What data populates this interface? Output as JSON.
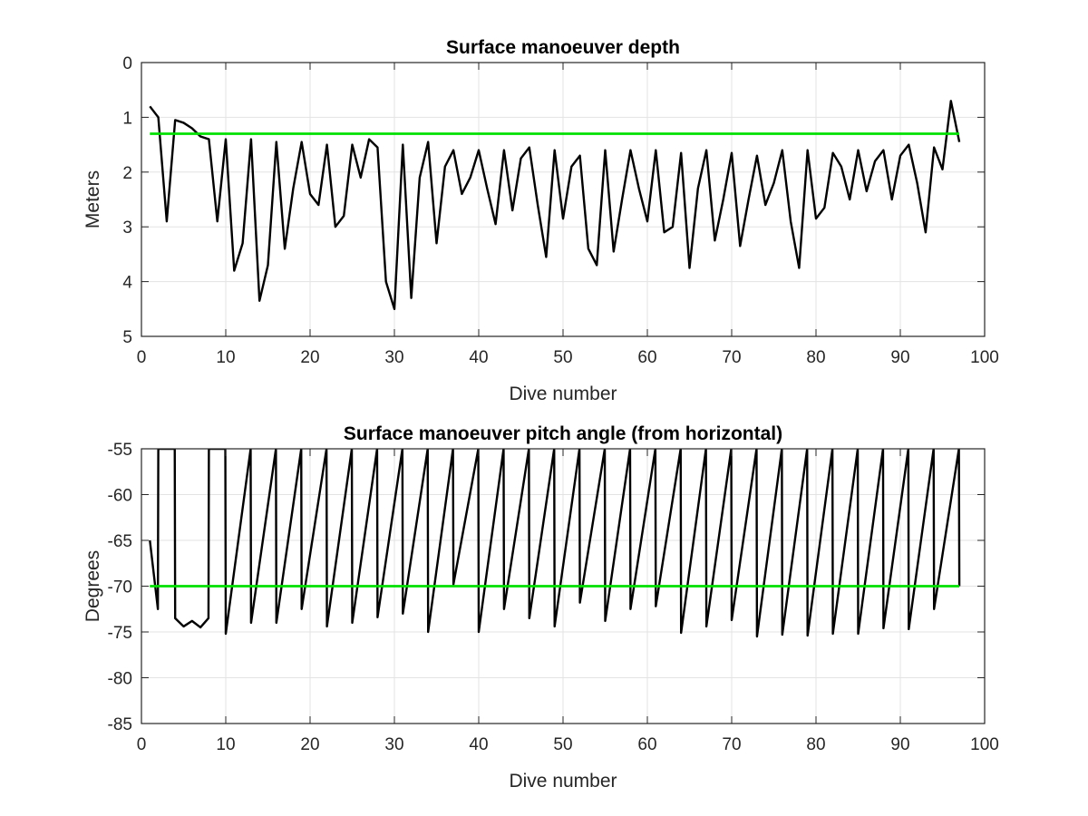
{
  "chart_data": [
    {
      "type": "line",
      "title": "Surface manoeuver depth",
      "xlabel": "Dive number",
      "ylabel": "Meters",
      "xlim": [
        0,
        100
      ],
      "ylim": [
        0,
        5
      ],
      "y_reversed": true,
      "grid": true,
      "xticks": [
        0,
        10,
        20,
        30,
        40,
        50,
        60,
        70,
        80,
        90,
        100
      ],
      "yticks": [
        0,
        1,
        2,
        3,
        4,
        5
      ],
      "series": [
        {
          "color": "#000000",
          "x": [
            1,
            2,
            3,
            4,
            5,
            6,
            7,
            8,
            9,
            10,
            11,
            12,
            13,
            14,
            15,
            16,
            17,
            18,
            19,
            20,
            21,
            22,
            23,
            24,
            25,
            26,
            27,
            28,
            29,
            30,
            31,
            32,
            33,
            34,
            35,
            36,
            37,
            38,
            39,
            40,
            41,
            42,
            43,
            44,
            45,
            46,
            47,
            48,
            49,
            50,
            51,
            52,
            53,
            54,
            55,
            56,
            57,
            58,
            59,
            60,
            61,
            62,
            63,
            64,
            65,
            66,
            67,
            68,
            69,
            70,
            71,
            72,
            73,
            74,
            75,
            76,
            77,
            78,
            79,
            80,
            81,
            82,
            83,
            84,
            85,
            86,
            87,
            88,
            89,
            90,
            91,
            92,
            93,
            94,
            95,
            96,
            97
          ],
          "y": [
            0.8,
            1.0,
            2.9,
            1.05,
            1.1,
            1.2,
            1.35,
            1.4,
            2.9,
            1.4,
            3.8,
            3.3,
            1.4,
            4.35,
            3.7,
            1.45,
            3.4,
            2.3,
            1.45,
            2.4,
            2.6,
            1.5,
            3.0,
            2.8,
            1.5,
            2.1,
            1.4,
            1.55,
            4.0,
            4.5,
            1.5,
            4.3,
            2.1,
            1.45,
            3.3,
            1.9,
            1.6,
            2.4,
            2.1,
            1.6,
            2.3,
            2.95,
            1.6,
            2.7,
            1.75,
            1.55,
            2.6,
            3.55,
            1.6,
            2.85,
            1.9,
            1.7,
            3.4,
            3.7,
            1.6,
            3.45,
            2.5,
            1.6,
            2.3,
            2.9,
            1.6,
            3.1,
            3.0,
            1.65,
            3.75,
            2.3,
            1.6,
            3.25,
            2.5,
            1.65,
            3.35,
            2.5,
            1.7,
            2.6,
            2.2,
            1.6,
            2.9,
            3.75,
            1.6,
            2.85,
            2.65,
            1.65,
            1.9,
            2.5,
            1.6,
            2.35,
            1.8,
            1.6,
            2.5,
            1.7,
            1.5,
            2.2,
            3.1,
            1.55,
            1.95,
            0.7,
            1.45
          ]
        },
        {
          "color": "#00e000",
          "x": [
            1,
            97
          ],
          "y": [
            1.3,
            1.3
          ]
        }
      ]
    },
    {
      "type": "line",
      "title": "Surface manoeuver pitch angle (from horizontal)",
      "xlabel": "Dive number",
      "ylabel": "Degrees",
      "xlim": [
        0,
        100
      ],
      "ylim": [
        -85,
        -55
      ],
      "grid": true,
      "xticks": [
        0,
        10,
        20,
        30,
        40,
        50,
        60,
        70,
        80,
        90,
        100
      ],
      "yticks": [
        -55,
        -60,
        -65,
        -70,
        -75,
        -80,
        -85
      ],
      "series": [
        {
          "color": "#000000",
          "x": [
            1,
            1.95,
            2,
            3.95,
            4,
            5,
            6,
            7,
            7.95,
            8,
            9.95,
            10,
            12.95,
            13,
            15.95,
            16,
            18.95,
            19,
            21.95,
            22,
            24.95,
            25,
            27.95,
            28,
            30.95,
            31,
            33.95,
            34,
            36.95,
            37,
            39.95,
            40,
            42.95,
            43,
            45.95,
            46,
            48.95,
            49,
            51.95,
            52,
            54.95,
            55,
            57.95,
            58,
            60.95,
            61,
            63.95,
            64,
            66.95,
            67,
            69.95,
            70,
            72.95,
            73,
            75.95,
            76,
            78.95,
            79,
            81.95,
            82,
            84.95,
            85,
            87.95,
            88,
            90.95,
            91,
            93.95,
            94,
            96.95,
            97
          ],
          "y": [
            -65,
            -72.5,
            -55,
            -55,
            -73.5,
            -74.4,
            -73.8,
            -74.5,
            -73.5,
            -55,
            -55,
            -75.2,
            -55,
            -74,
            -55,
            -74,
            -55,
            -72.5,
            -55,
            -74.4,
            -55,
            -74,
            -55,
            -73.4,
            -55,
            -73,
            -55,
            -75,
            -55,
            -69.8,
            -55,
            -75,
            -55,
            -72.5,
            -55,
            -73.5,
            -55,
            -74.4,
            -55,
            -71.8,
            -55,
            -73.8,
            -55,
            -72.5,
            -55,
            -72.2,
            -55,
            -75.1,
            -55,
            -74.4,
            -55,
            -73.7,
            -55,
            -75.5,
            -55,
            -75.3,
            -55,
            -75.4,
            -55,
            -75.2,
            -55,
            -75.2,
            -55,
            -74.6,
            -55,
            -74.7,
            -55,
            -72.5,
            -55,
            -70
          ]
        },
        {
          "color": "#00e000",
          "x": [
            1,
            97
          ],
          "y": [
            -70,
            -70
          ]
        }
      ]
    }
  ]
}
